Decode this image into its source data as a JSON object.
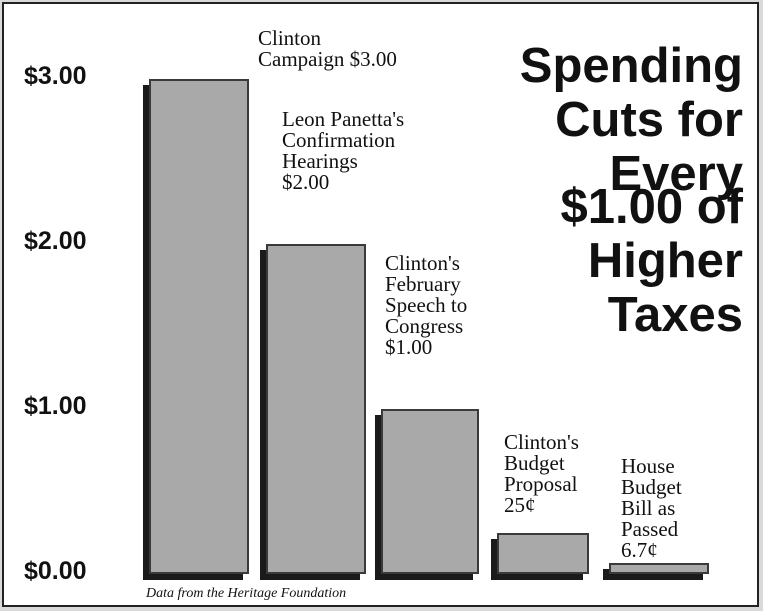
{
  "chart_data": {
    "type": "bar",
    "title_lines": [
      "Spending",
      "Cuts for",
      "Every",
      "$1.00 of",
      "Higher",
      "Taxes"
    ],
    "categories": [
      "Clinton Campaign",
      "Leon Panetta's Confirmation Hearings",
      "Clinton's February Speech to Congress",
      "Clinton's Budget Proposal",
      "House Budget Bill as Passed"
    ],
    "values": [
      3.0,
      2.0,
      1.0,
      0.25,
      0.067
    ],
    "annotations": [
      [
        "Clinton",
        "Campaign $3.00"
      ],
      [
        "Leon Panetta's",
        "Confirmation",
        "Hearings",
        "$2.00"
      ],
      [
        "Clinton's",
        "February",
        "Speech to",
        "Congress",
        "$1.00"
      ],
      [
        "Clinton's",
        "Budget",
        "Proposal",
        "25¢"
      ],
      [
        "House",
        "Budget",
        "Bill as",
        "Passed",
        "6.7¢"
      ]
    ],
    "yticks": [
      "$0.00",
      "$1.00",
      "$2.00",
      "$3.00"
    ],
    "ytick_values": [
      0,
      1,
      2,
      3
    ],
    "ylim": [
      0,
      3
    ],
    "grid": false,
    "legend": "none",
    "source": "Data from the Heritage Foundation"
  }
}
